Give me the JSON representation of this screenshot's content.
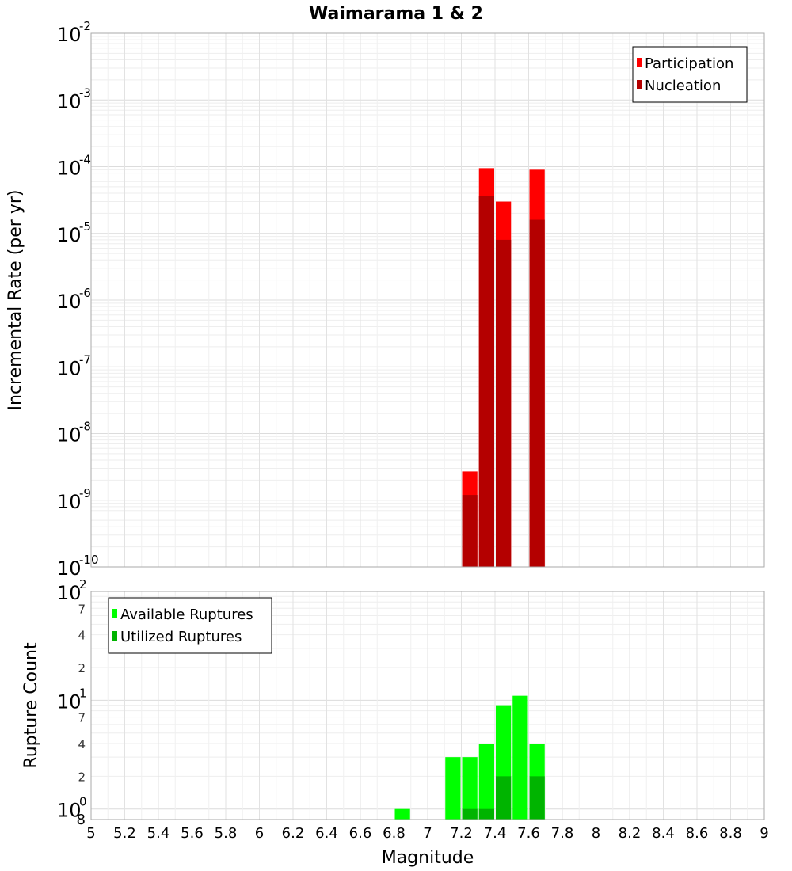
{
  "chart_data": [
    {
      "type": "bar",
      "title": "Waimarama 1 & 2",
      "xlabel": "Magnitude",
      "ylabel": "Incremental Rate (per yr)",
      "yscale": "log",
      "ylim": [
        1e-10,
        0.01
      ],
      "xlim": [
        5,
        9
      ],
      "decade_exponents": [
        "-2",
        "-3",
        "-4",
        "-5",
        "-6",
        "-7",
        "-8",
        "-9",
        "-10"
      ],
      "decade_base": "10",
      "legend_position": "top-right",
      "series": [
        {
          "name": "Participation",
          "color": "#ff0000",
          "x": [
            7.25,
            7.35,
            7.45,
            7.65
          ],
          "values": [
            2.7e-09,
            9.5e-05,
            3e-05,
            9e-05
          ]
        },
        {
          "name": "Nucleation",
          "color": "#b40000",
          "x": [
            7.25,
            7.35,
            7.45,
            7.65
          ],
          "values": [
            1.2e-09,
            3.6e-05,
            8e-06,
            1.6e-05
          ]
        }
      ]
    },
    {
      "type": "bar",
      "xlabel": "Magnitude",
      "ylabel": "Rupture Count",
      "yscale": "log",
      "ylim": [
        0.8,
        100
      ],
      "xlim": [
        5,
        9
      ],
      "x_ticks": [
        "5",
        "5.2",
        "5.4",
        "5.6",
        "5.8",
        "6",
        "6.2",
        "6.4",
        "6.6",
        "6.8",
        "7",
        "7.2",
        "7.4",
        "7.6",
        "7.8",
        "8",
        "8.2",
        "8.4",
        "8.6",
        "8.8",
        "9"
      ],
      "decade_base": "10",
      "decade_exponents": [
        "2",
        "1",
        "0"
      ],
      "minor_tick_labels": [
        "7",
        "4",
        "2",
        "7",
        "4",
        "2"
      ],
      "axis_bottom_label": "8",
      "legend_position": "top-left",
      "series": [
        {
          "name": "Available Ruptures",
          "color": "#00ff00",
          "x": [
            6.85,
            7.15,
            7.25,
            7.35,
            7.45,
            7.55,
            7.65
          ],
          "values": [
            1,
            3,
            3,
            4,
            9,
            11,
            4
          ]
        },
        {
          "name": "Utilized Ruptures",
          "color": "#00b400",
          "x": [
            7.25,
            7.35,
            7.45,
            7.65
          ],
          "values": [
            1,
            1,
            2,
            2
          ]
        }
      ]
    }
  ]
}
